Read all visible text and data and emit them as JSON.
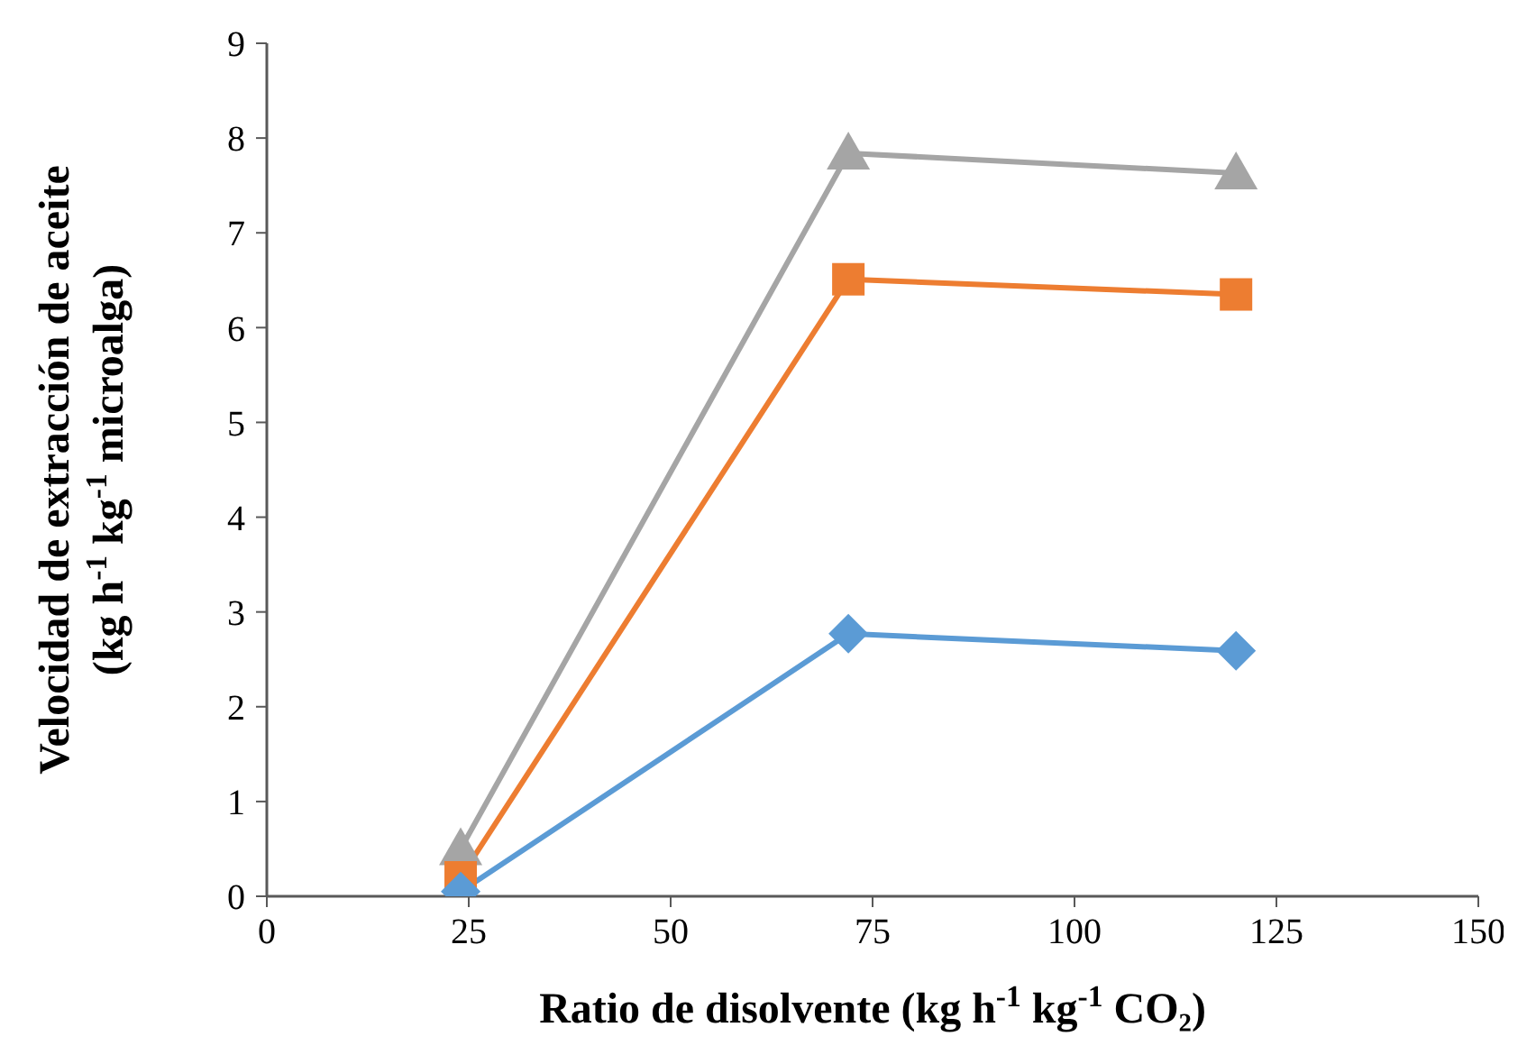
{
  "chart_data": {
    "type": "line",
    "xlabel": "Ratio de disolvente (kg h$^{-1}$ kg$^{-1}$ CO₂)",
    "ylabel": "Velocidad de extracción de aceite\n(kg h$^{-1}$ kg$^{-1}$ microalga)",
    "x": [
      24,
      72,
      120
    ],
    "series": [
      {
        "color": "#5b9bd5",
        "marker": "diamond",
        "values": [
          0.05,
          2.77,
          2.59
        ]
      },
      {
        "color": "#ed7d31",
        "marker": "square",
        "values": [
          0.2,
          6.51,
          6.35
        ]
      },
      {
        "color": "#a5a5a5",
        "marker": "triangle",
        "values": [
          0.5,
          7.84,
          7.63
        ]
      }
    ],
    "xlim": [
      0,
      150
    ],
    "xticks": [
      0,
      25,
      50,
      75,
      100,
      125,
      150
    ],
    "ylim": [
      0,
      9
    ],
    "yticks": [
      0,
      1,
      2,
      3,
      4,
      5,
      6,
      7,
      8,
      9
    ],
    "grid": false,
    "legend": false,
    "line_style": "solid"
  }
}
